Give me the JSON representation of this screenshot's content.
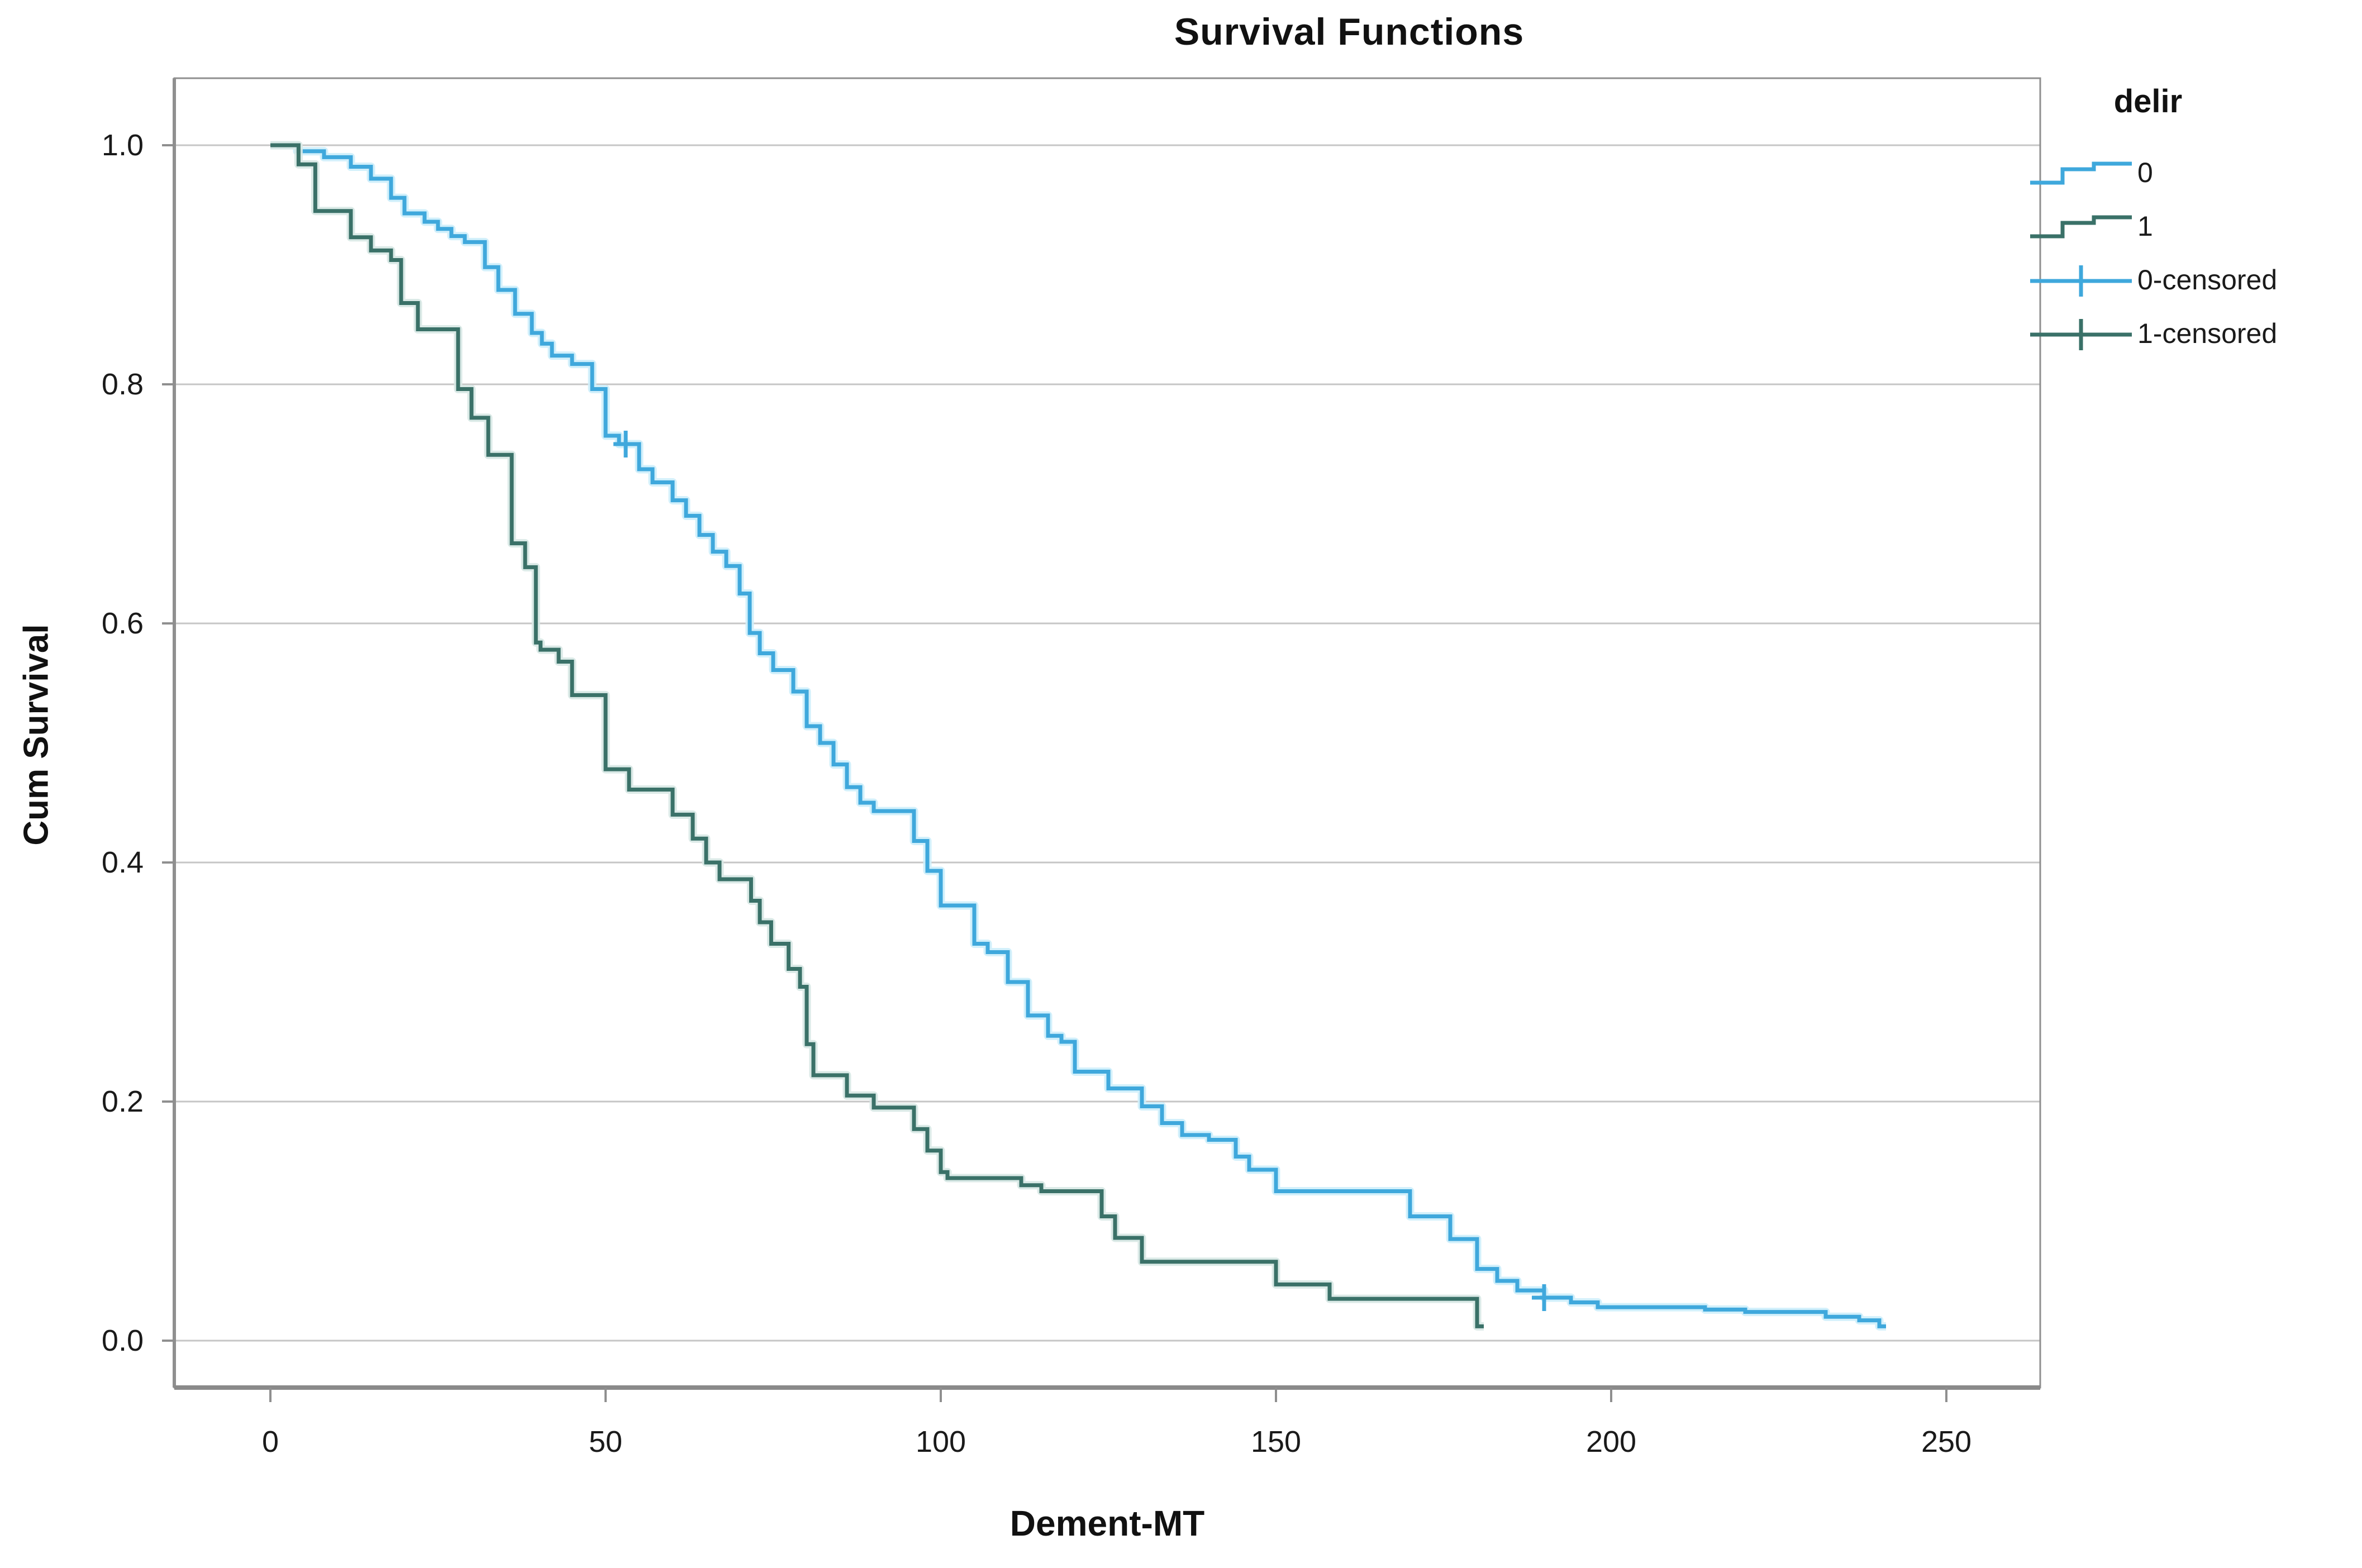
{
  "title": "Survival Functions",
  "y_axis": {
    "label": "Cum Survival",
    "ticks": [
      "1.0",
      "0.8",
      "0.6",
      "0.4",
      "0.2",
      "0.0"
    ],
    "tick_values": [
      1.0,
      0.8,
      0.6,
      0.4,
      0.2,
      0.0
    ]
  },
  "x_axis": {
    "label": "Dement-MT",
    "ticks": [
      "0",
      "50",
      "100",
      "150",
      "200",
      "250"
    ],
    "tick_values": [
      0,
      50,
      100,
      150,
      200,
      250
    ]
  },
  "legend": {
    "title": "delir",
    "items": [
      {
        "label": "0",
        "type": "step-line",
        "series": "0"
      },
      {
        "label": "1",
        "type": "step-line",
        "series": "1"
      },
      {
        "label": "0-censored",
        "type": "censor-mark",
        "series": "0"
      },
      {
        "label": "1-censored",
        "type": "censor-mark",
        "series": "1"
      }
    ]
  },
  "colors": {
    "series_0": "#3fa8dc",
    "series_0_halo": "#cdeefb",
    "series_1": "#3a7168",
    "series_1_halo": "#d7e8e4",
    "gridline": "#c6c6c6",
    "frame": "#8f8f8f",
    "text": "#1a1a1a"
  },
  "chart_data": {
    "type": "line",
    "variant": "kaplan-meier-step",
    "title": "Survival Functions",
    "xlabel": "Dement-MT",
    "ylabel": "Cum Survival",
    "xlim": [
      -14,
      264
    ],
    "ylim": [
      -0.04,
      1.06
    ],
    "x_ticks": [
      0,
      50,
      100,
      150,
      200,
      250
    ],
    "y_ticks": [
      0.0,
      0.2,
      0.4,
      0.6,
      0.8,
      1.0
    ],
    "grid": "horizontal",
    "legend_position": "top-right",
    "series": [
      {
        "name": "0",
        "color": "#3fa8dc",
        "halo": "#cdeefb",
        "end_time": 241,
        "steps": [
          [
            0,
            1.0
          ],
          [
            4,
            0.995
          ],
          [
            8,
            0.99
          ],
          [
            12,
            0.982
          ],
          [
            15,
            0.972
          ],
          [
            18,
            0.956
          ],
          [
            20,
            0.943
          ],
          [
            23,
            0.936
          ],
          [
            25,
            0.93
          ],
          [
            27,
            0.924
          ],
          [
            29,
            0.919
          ],
          [
            32,
            0.898
          ],
          [
            34,
            0.879
          ],
          [
            36.5,
            0.859
          ],
          [
            39,
            0.843
          ],
          [
            40.5,
            0.834
          ],
          [
            42,
            0.824
          ],
          [
            45,
            0.817
          ],
          [
            48,
            0.796
          ],
          [
            50,
            0.757
          ],
          [
            52,
            0.75
          ],
          [
            55,
            0.729
          ],
          [
            57,
            0.718
          ],
          [
            60,
            0.703
          ],
          [
            62,
            0.69
          ],
          [
            64,
            0.674
          ],
          [
            66,
            0.66
          ],
          [
            68,
            0.648
          ],
          [
            70,
            0.625
          ],
          [
            71.5,
            0.592
          ],
          [
            73,
            0.575
          ],
          [
            75,
            0.561
          ],
          [
            78,
            0.543
          ],
          [
            80,
            0.514
          ],
          [
            82,
            0.5
          ],
          [
            84,
            0.482
          ],
          [
            86,
            0.463
          ],
          [
            88,
            0.45
          ],
          [
            90,
            0.443
          ],
          [
            96,
            0.418
          ],
          [
            98,
            0.393
          ],
          [
            100,
            0.364
          ],
          [
            105,
            0.332
          ],
          [
            107,
            0.325
          ],
          [
            110,
            0.3
          ],
          [
            113,
            0.272
          ],
          [
            116,
            0.255
          ],
          [
            118,
            0.25
          ],
          [
            120,
            0.225
          ],
          [
            125,
            0.211
          ],
          [
            130,
            0.196
          ],
          [
            133,
            0.182
          ],
          [
            136,
            0.172
          ],
          [
            140,
            0.168
          ],
          [
            144,
            0.154
          ],
          [
            146,
            0.143
          ],
          [
            150,
            0.125
          ],
          [
            170,
            0.104
          ],
          [
            176,
            0.085
          ],
          [
            180,
            0.06
          ],
          [
            183,
            0.05
          ],
          [
            186,
            0.042
          ],
          [
            190,
            0.036
          ],
          [
            194,
            0.032
          ],
          [
            198,
            0.028
          ],
          [
            214,
            0.026
          ],
          [
            220,
            0.024
          ],
          [
            232,
            0.02
          ],
          [
            237,
            0.017
          ],
          [
            240,
            0.012
          ]
        ],
        "censored": [
          [
            53,
            0.75
          ],
          [
            190,
            0.036
          ]
        ]
      },
      {
        "name": "1",
        "color": "#3a7168",
        "halo": "#d7e8e4",
        "end_time": 181,
        "steps": [
          [
            0,
            1.0
          ],
          [
            4.2,
            0.984
          ],
          [
            6.7,
            0.945
          ],
          [
            12,
            0.923
          ],
          [
            15,
            0.912
          ],
          [
            18,
            0.904
          ],
          [
            19.5,
            0.868
          ],
          [
            22,
            0.846
          ],
          [
            28,
            0.796
          ],
          [
            30,
            0.772
          ],
          [
            32.5,
            0.741
          ],
          [
            36,
            0.667
          ],
          [
            38,
            0.647
          ],
          [
            39.6,
            0.584
          ],
          [
            40.3,
            0.578
          ],
          [
            43,
            0.568
          ],
          [
            45,
            0.54
          ],
          [
            50,
            0.478
          ],
          [
            53.5,
            0.461
          ],
          [
            60,
            0.44
          ],
          [
            63,
            0.42
          ],
          [
            65,
            0.4
          ],
          [
            67,
            0.386
          ],
          [
            71.7,
            0.368
          ],
          [
            73,
            0.35
          ],
          [
            74.7,
            0.332
          ],
          [
            77.3,
            0.311
          ],
          [
            79,
            0.296
          ],
          [
            80,
            0.248
          ],
          [
            81,
            0.222
          ],
          [
            86,
            0.205
          ],
          [
            90,
            0.195
          ],
          [
            96,
            0.177
          ],
          [
            98,
            0.159
          ],
          [
            100,
            0.141
          ],
          [
            101,
            0.136
          ],
          [
            112,
            0.13
          ],
          [
            115,
            0.125
          ],
          [
            124,
            0.104
          ],
          [
            126,
            0.086
          ],
          [
            130,
            0.066
          ],
          [
            150,
            0.047
          ],
          [
            158,
            0.035
          ],
          [
            180,
            0.012
          ]
        ],
        "censored": []
      }
    ]
  }
}
